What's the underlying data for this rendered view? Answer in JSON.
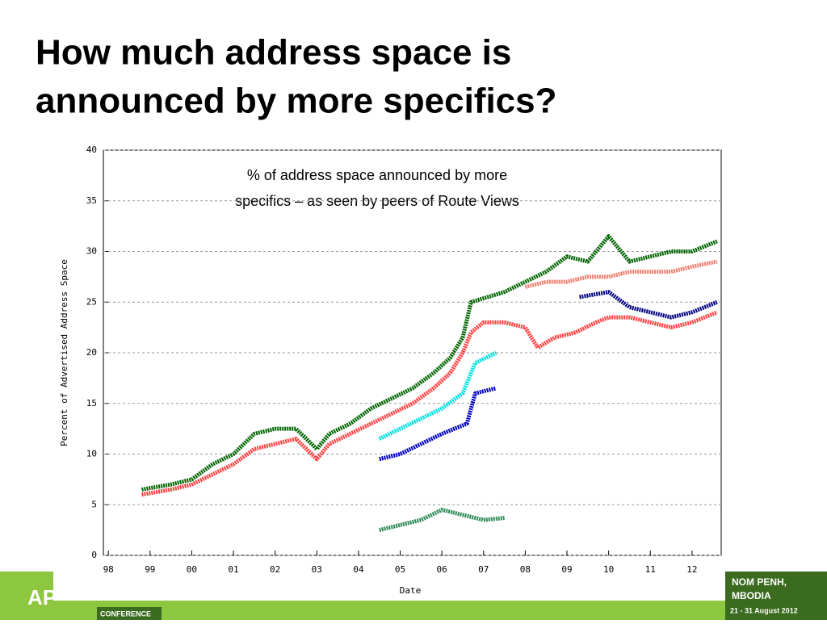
{
  "title": "How much address space is announced by more specifics?",
  "footer": {
    "conference": "CONFERENCE",
    "city": "NOM PENH,",
    "country": "MBODIA",
    "dates": "21 - 31 August 2012"
  },
  "chart_data": {
    "type": "line",
    "annotation": [
      "% of address space announced by more",
      "specifics –  as seen by peers of Route Views"
    ],
    "xlabel": "Date",
    "ylabel": "Percent of Advertised Address Space",
    "xlim": [
      1997.88,
      2012.7
    ],
    "ylim": [
      0,
      40
    ],
    "xticks": [
      {
        "value": 1998,
        "label": "98"
      },
      {
        "value": 1999,
        "label": "99"
      },
      {
        "value": 2000,
        "label": "00"
      },
      {
        "value": 2001,
        "label": "01"
      },
      {
        "value": 2002,
        "label": "02"
      },
      {
        "value": 2003,
        "label": "03"
      },
      {
        "value": 2004,
        "label": "04"
      },
      {
        "value": 2005,
        "label": "05"
      },
      {
        "value": 2006,
        "label": "06"
      },
      {
        "value": 2007,
        "label": "07"
      },
      {
        "value": 2008,
        "label": "08"
      },
      {
        "value": 2009,
        "label": "09"
      },
      {
        "value": 2010,
        "label": "10"
      },
      {
        "value": 2011,
        "label": "11"
      },
      {
        "value": 2012,
        "label": "12"
      }
    ],
    "yticks": [
      0,
      5,
      10,
      15,
      20,
      25,
      30,
      35,
      40
    ],
    "grid": true,
    "series": [
      {
        "color": "#006400",
        "x": [
          1998.8,
          1999.5,
          2000,
          2000.5,
          2001,
          2001.5,
          2002,
          2002.5,
          2003,
          2003.3,
          2003.8,
          2004.3,
          2004.8,
          2005.3,
          2005.8,
          2006.2,
          2006.5,
          2006.7,
          2007.5,
          2008,
          2008.5,
          2009,
          2009.5,
          2010,
          2010.5,
          2011,
          2011.5,
          2012,
          2012.6
        ],
        "values": [
          6.5,
          7,
          7.5,
          9,
          10,
          12,
          12.5,
          12.5,
          10.5,
          12,
          13,
          14.5,
          15.5,
          16.5,
          18,
          19.5,
          21.5,
          25,
          26,
          27,
          28,
          29.5,
          29,
          31.5,
          29,
          29.5,
          30,
          30,
          31
        ]
      },
      {
        "color": "#f08070",
        "x": [
          2008,
          2008.5,
          2009,
          2009.5,
          2010,
          2010.5,
          2011,
          2011.5,
          2012,
          2012.6
        ],
        "values": [
          26.5,
          27,
          27,
          27.5,
          27.5,
          28,
          28,
          28,
          28.5,
          29
        ]
      },
      {
        "color": "#ff4040",
        "x": [
          1998.8,
          1999.5,
          2000,
          2000.5,
          2001,
          2001.5,
          2002,
          2002.5,
          2003,
          2003.3,
          2003.8,
          2004.3,
          2004.8,
          2005.3,
          2005.8,
          2006.2,
          2006.5,
          2006.7,
          2007,
          2007.5,
          2008,
          2008.3,
          2008.7,
          2009.2,
          2009.7,
          2010,
          2010.5,
          2011,
          2011.5,
          2012,
          2012.6
        ],
        "values": [
          6,
          6.5,
          7,
          8,
          9,
          10.5,
          11,
          11.5,
          9.5,
          11,
          12,
          13,
          14,
          15,
          16.5,
          18,
          20,
          22,
          23,
          23,
          22.5,
          20.5,
          21.5,
          22,
          23,
          23.5,
          23.5,
          23,
          22.5,
          23,
          24
        ]
      },
      {
        "color": "#00e0e0",
        "x": [
          2004.5,
          2005,
          2005.5,
          2006,
          2006.5,
          2006.8,
          2007.3
        ],
        "values": [
          11.5,
          12.5,
          13.5,
          14.5,
          16,
          19,
          20
        ]
      },
      {
        "color": "#0000c0",
        "x": [
          2004.5,
          2005,
          2005.5,
          2006,
          2006.6,
          2006.8,
          2007.3
        ],
        "values": [
          9.5,
          10,
          11,
          12,
          13,
          16,
          16.5
        ]
      },
      {
        "color": "#000080",
        "x": [
          2009.3,
          2010,
          2010.5,
          2011,
          2011.5,
          2012,
          2012.6
        ],
        "values": [
          25.5,
          26,
          24.5,
          24,
          23.5,
          24,
          25
        ]
      },
      {
        "color": "#2e8b57",
        "x": [
          2004.5,
          2005,
          2005.5,
          2006,
          2006.5,
          2007,
          2007.5
        ],
        "values": [
          2.5,
          3,
          3.5,
          4.5,
          4,
          3.5,
          3.7
        ]
      }
    ]
  }
}
